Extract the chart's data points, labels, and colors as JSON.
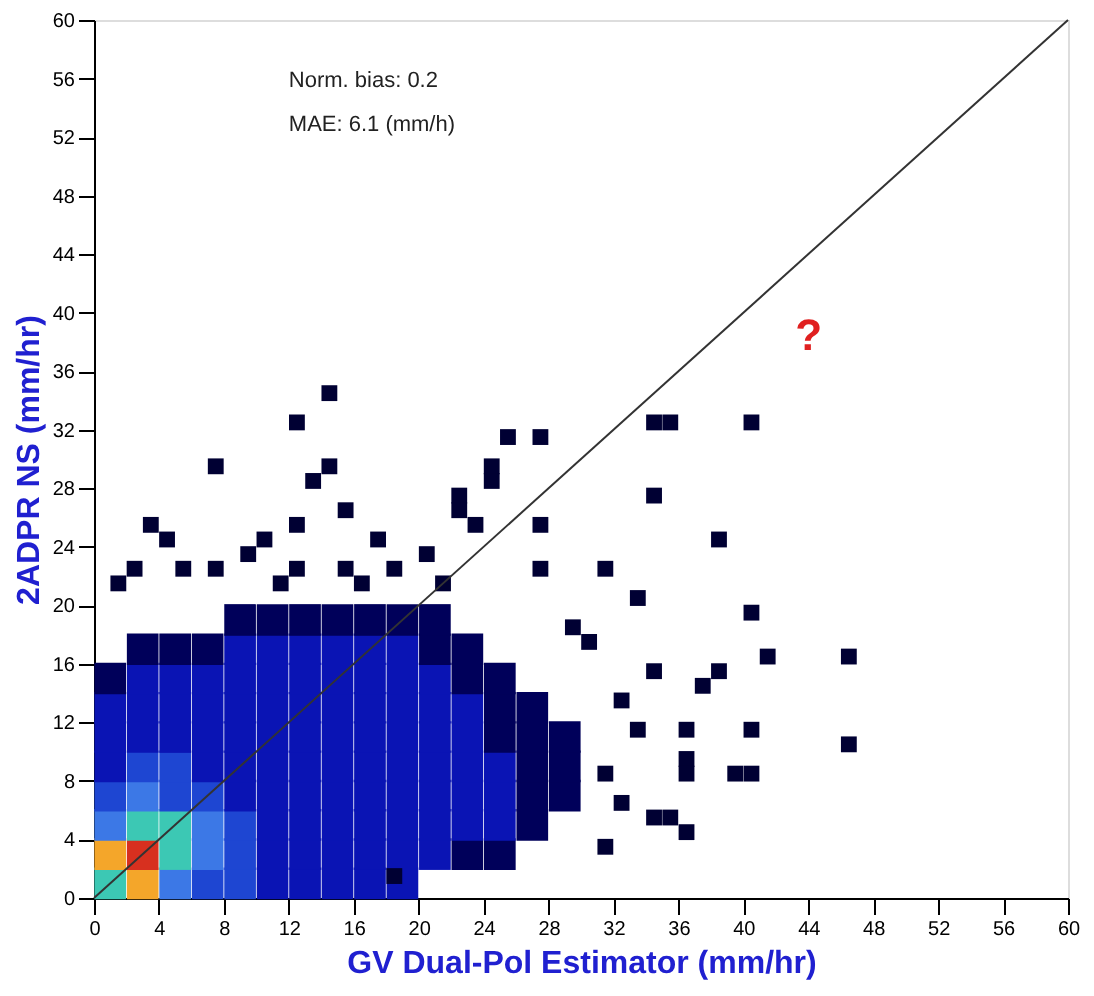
{
  "chart_data": {
    "type": "scatter",
    "xlabel": "GV Dual-Pol Estimator (mm/hr)",
    "ylabel": "2ADPR NS (mm/hr)",
    "xlim": [
      0,
      60
    ],
    "ylim": [
      0,
      60
    ],
    "xticks": [
      0,
      4,
      8,
      12,
      16,
      20,
      24,
      28,
      32,
      36,
      40,
      44,
      48,
      52,
      56,
      60
    ],
    "yticks": [
      0,
      4,
      8,
      12,
      16,
      20,
      24,
      28,
      32,
      36,
      40,
      44,
      48,
      52,
      56,
      60
    ],
    "marker": "square",
    "annotations": [
      "Norm. bias: 0.2",
      "MAE: 6.1 (mm/h)",
      "?"
    ],
    "series": [
      {
        "x": [
          1,
          1,
          1,
          1,
          1,
          1,
          1,
          1,
          3,
          3,
          3,
          3,
          3,
          3,
          3,
          3,
          3,
          5,
          5,
          5,
          5,
          5,
          5,
          5,
          5,
          5,
          7,
          7,
          7,
          7,
          7,
          7,
          7,
          7,
          7,
          9,
          9,
          9,
          9,
          9,
          9,
          9,
          9,
          9,
          9,
          11,
          11,
          11,
          11,
          11,
          11,
          11,
          11,
          11,
          11,
          13,
          13,
          13,
          13,
          13,
          13,
          13,
          13,
          13,
          13,
          15,
          15,
          15,
          15,
          15,
          15,
          15,
          15,
          15,
          15,
          17,
          17,
          17,
          17,
          17,
          17,
          17,
          17,
          17,
          17,
          19,
          19,
          19,
          19,
          19,
          19,
          19,
          19,
          19,
          19,
          21,
          21,
          21,
          21,
          21,
          21,
          21,
          21,
          21,
          23,
          23,
          23,
          23,
          23,
          23,
          23,
          23,
          25,
          25,
          25,
          25,
          25,
          25,
          25,
          27,
          27,
          27,
          27,
          27,
          29,
          29,
          29
        ],
        "values": [
          1,
          3,
          5,
          7,
          9,
          11,
          13,
          15,
          1,
          3,
          5,
          7,
          9,
          11,
          13,
          15,
          17,
          1,
          3,
          5,
          7,
          9,
          11,
          13,
          15,
          17,
          1,
          3,
          5,
          7,
          9,
          11,
          13,
          15,
          17,
          1,
          3,
          5,
          7,
          9,
          11,
          13,
          15,
          17,
          19,
          1,
          3,
          5,
          7,
          9,
          11,
          13,
          15,
          17,
          19,
          1,
          3,
          5,
          7,
          9,
          11,
          13,
          15,
          17,
          19,
          1,
          3,
          5,
          7,
          9,
          11,
          13,
          15,
          17,
          19,
          1,
          3,
          5,
          7,
          9,
          11,
          13,
          15,
          17,
          19,
          1,
          3,
          5,
          7,
          9,
          11,
          13,
          15,
          17,
          19,
          3,
          5,
          7,
          9,
          11,
          13,
          15,
          17,
          19,
          3,
          5,
          7,
          9,
          11,
          13,
          15,
          17,
          3,
          5,
          7,
          9,
          11,
          13,
          15,
          5,
          7,
          9,
          11,
          13,
          7,
          9,
          11
        ],
        "colors": [
          "#3cc8b4",
          "#f4a62a",
          "#3c78e6",
          "#1e46d2",
          "#0a14b4",
          "#0a14b4",
          "#0a14b4",
          "#00005a",
          "#f4a62a",
          "#d7301f",
          "#3cc8b4",
          "#3c78e6",
          "#1e46d2",
          "#0a14b4",
          "#0a14b4",
          "#0a14b4",
          "#00005a",
          "#3c78e6",
          "#3cc8b4",
          "#3cc8b4",
          "#1e46d2",
          "#1e46d2",
          "#0a14b4",
          "#0a14b4",
          "#0a14b4",
          "#00005a",
          "#1e46d2",
          "#3c78e6",
          "#3c78e6",
          "#1e46d2",
          "#0a14b4",
          "#0a14b4",
          "#0a14b4",
          "#0a14b4",
          "#00005a",
          "#1e46d2",
          "#1e46d2",
          "#1e46d2",
          "#0a14b4",
          "#0a14b4",
          "#0a14b4",
          "#0a14b4",
          "#0a14b4",
          "#0a14b4",
          "#00005a",
          "#0a14b4",
          "#0a14b4",
          "#0a14b4",
          "#0a14b4",
          "#0a14b4",
          "#0a14b4",
          "#0a14b4",
          "#0a14b4",
          "#0a14b4",
          "#00005a",
          "#0a14b4",
          "#0a14b4",
          "#0a14b4",
          "#0a14b4",
          "#0a14b4",
          "#0a14b4",
          "#0a14b4",
          "#0a14b4",
          "#0a14b4",
          "#00005a",
          "#0a14b4",
          "#0a14b4",
          "#0a14b4",
          "#0a14b4",
          "#0a14b4",
          "#0a14b4",
          "#0a14b4",
          "#0a14b4",
          "#0a14b4",
          "#00005a",
          "#0a14b4",
          "#0a14b4",
          "#0a14b4",
          "#0a14b4",
          "#0a14b4",
          "#0a14b4",
          "#0a14b4",
          "#0a14b4",
          "#0a14b4",
          "#00005a",
          "#0a14b4",
          "#0a14b4",
          "#0a14b4",
          "#0a14b4",
          "#0a14b4",
          "#0a14b4",
          "#0a14b4",
          "#0a14b4",
          "#0a14b4",
          "#00005a",
          "#0a14b4",
          "#0a14b4",
          "#0a14b4",
          "#0a14b4",
          "#0a14b4",
          "#0a14b4",
          "#0a14b4",
          "#00005a",
          "#00005a",
          "#00005a",
          "#0a14b4",
          "#0a14b4",
          "#0a14b4",
          "#0a14b4",
          "#0a14b4",
          "#00005a",
          "#00005a",
          "#00005a",
          "#0a14b4",
          "#0a14b4",
          "#0a14b4",
          "#00005a",
          "#00005a",
          "#00005a",
          "#00005a",
          "#00005a",
          "#00005a",
          "#00005a",
          "#00005a",
          "#00005a",
          "#00005a",
          "#00005a"
        ]
      },
      {
        "color": "#000033",
        "x": [
          14.5,
          12.5,
          7.5,
          14.5,
          13.5,
          15.5,
          12.5,
          25.5,
          27.5,
          24.5,
          24.5,
          3.5,
          4.5,
          10.5,
          9.5,
          22.5,
          22.5,
          23.5,
          2.5,
          5.5,
          7.5,
          12.5,
          15.5,
          18.5,
          20.5,
          17.5,
          1.5,
          11.5,
          16.5,
          21.5,
          34.5,
          35.5,
          40.5,
          34.5,
          38.5,
          31.5,
          33.5,
          40.5,
          41.5,
          46.5,
          34.5,
          38.5,
          37.5,
          32.5,
          40.5,
          36.5,
          46.5,
          33.5,
          31.5,
          36.5,
          36.5,
          39.5,
          40.5,
          32.5,
          34.5,
          35.5,
          36.5,
          31.5,
          29.5,
          30.5,
          27.5,
          27.5,
          18.5
        ],
        "values": [
          34.5,
          32.5,
          29.5,
          29.5,
          28.5,
          26.5,
          25.5,
          31.5,
          31.5,
          29.5,
          28.5,
          25.5,
          24.5,
          24.5,
          23.5,
          27.5,
          26.5,
          25.5,
          22.5,
          22.5,
          22.5,
          22.5,
          22.5,
          22.5,
          23.5,
          24.5,
          21.5,
          21.5,
          21.5,
          21.5,
          32.5,
          32.5,
          32.5,
          27.5,
          24.5,
          22.5,
          20.5,
          19.5,
          16.5,
          16.5,
          15.5,
          15.5,
          14.5,
          13.5,
          11.5,
          11.5,
          10.5,
          11.5,
          8.5,
          9.5,
          8.5,
          8.5,
          8.5,
          6.5,
          5.5,
          5.5,
          4.5,
          3.5,
          18.5,
          17.5,
          25.5,
          22.5,
          1.5
        ]
      },
      {
        "type": "line",
        "marker": "none",
        "line_style": "solid",
        "color": "#333333",
        "x": [
          0,
          60
        ],
        "values": [
          0,
          60
        ]
      }
    ]
  }
}
